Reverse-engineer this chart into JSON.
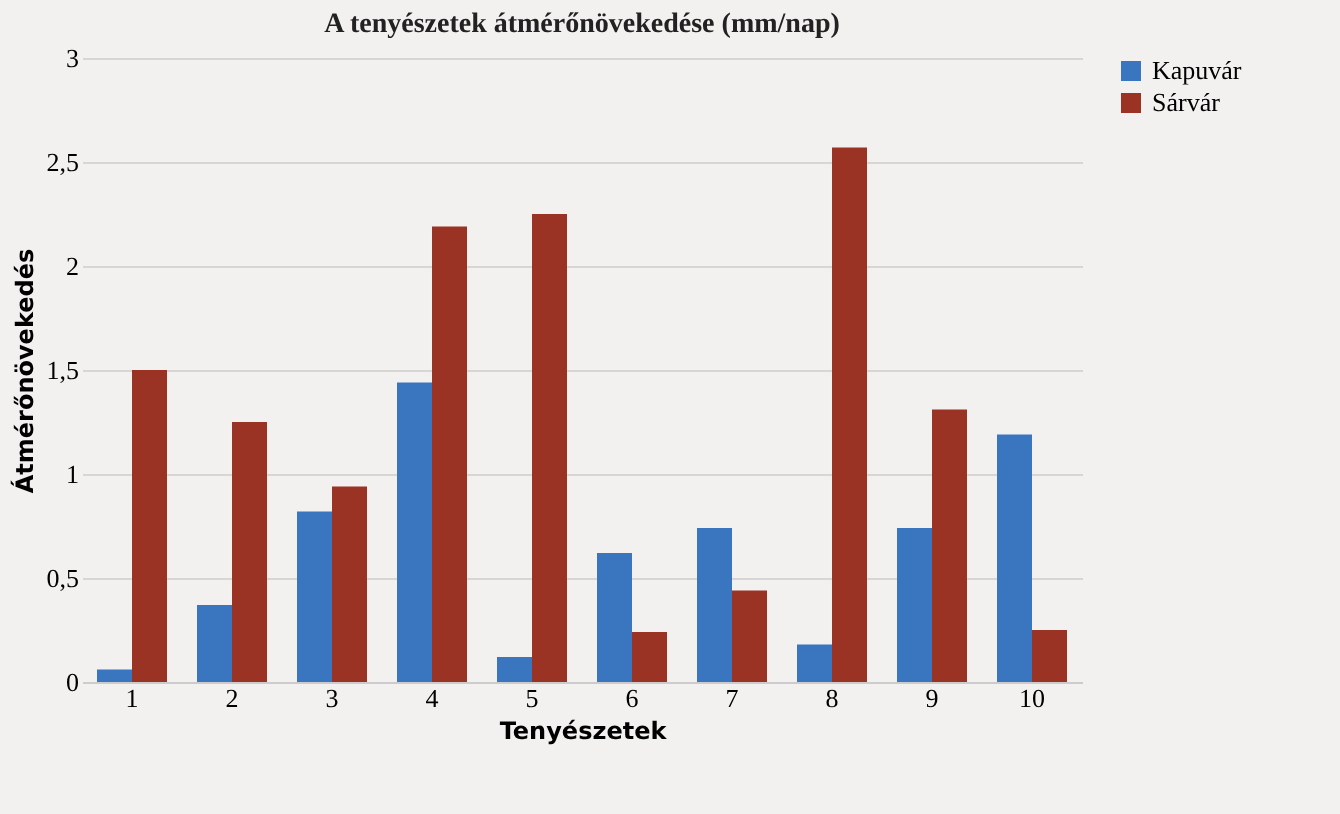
{
  "chart_data": {
    "type": "bar",
    "title": "A tenyészetek átmérőnövekedése (mm/nap)",
    "xlabel": "Tenyészetek",
    "ylabel": "Átmérőnövekedés",
    "categories": [
      "1",
      "2",
      "3",
      "4",
      "5",
      "6",
      "7",
      "8",
      "9",
      "10"
    ],
    "series": [
      {
        "name": "Kapuvár",
        "color": "#3a76c0",
        "values": [
          0.06,
          0.37,
          0.82,
          1.44,
          0.12,
          0.62,
          0.74,
          0.18,
          0.74,
          1.19
        ]
      },
      {
        "name": "Sárvár",
        "color": "#9b3324",
        "values": [
          1.5,
          1.25,
          0.94,
          2.19,
          2.25,
          0.24,
          0.44,
          2.57,
          1.31,
          0.25
        ]
      }
    ],
    "ylim": [
      0,
      3
    ],
    "yticks": [
      0,
      {
        "value": 0.5,
        "label": "0,5"
      },
      1,
      {
        "value": 1.5,
        "label": "1,5"
      },
      2,
      {
        "value": 2.5,
        "label": "2,5"
      },
      3
    ],
    "grid": "y",
    "legend": "right"
  }
}
